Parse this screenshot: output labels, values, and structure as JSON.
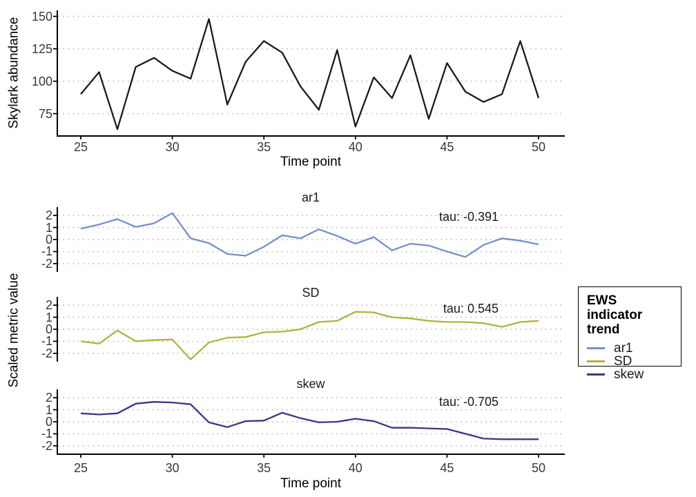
{
  "figure": {
    "background": "#ffffff",
    "axis_color": "#000000",
    "grid_color": "#c9c9c9",
    "tick_text_color": "#383838"
  },
  "x_values": [
    25,
    26,
    27,
    28,
    29,
    30,
    31,
    32,
    33,
    34,
    35,
    36,
    37,
    38,
    39,
    40,
    41,
    42,
    43,
    44,
    45,
    46,
    47,
    48,
    49,
    50
  ],
  "shared_axis": {
    "ylabel": "Scaled metric value",
    "xlabel": "Time point",
    "xticks": [
      25,
      30,
      35,
      40,
      45,
      50
    ]
  },
  "chart_data": [
    {
      "id": "abundance",
      "type": "line",
      "title": "",
      "xlabel": "Time point",
      "ylabel": "Skylark abundance",
      "color": "#1a1a1a",
      "xticks": [
        25,
        30,
        35,
        40,
        45,
        50
      ],
      "yticks": [
        75,
        100,
        125,
        150
      ],
      "xlim": [
        23.7,
        51.4
      ],
      "ylim": [
        58,
        155
      ],
      "grid": "dotted-horizontal",
      "values": [
        90,
        107,
        63,
        111,
        118,
        108,
        102,
        148,
        82,
        115,
        131,
        122,
        96,
        78,
        124,
        65,
        103,
        87,
        120,
        71,
        114,
        92,
        84,
        90,
        131,
        87
      ]
    },
    {
      "id": "ar1",
      "type": "line",
      "facet_title": "ar1",
      "annotation": "tau: -0.391",
      "color": "#758FCC",
      "yticks": [
        -2,
        -1,
        0,
        1,
        2
      ],
      "ylim": [
        -2.7,
        2.7
      ],
      "grid": "dotted-horizontal",
      "values": [
        0.9,
        1.25,
        1.7,
        1.05,
        1.35,
        2.2,
        0.1,
        -0.3,
        -1.2,
        -1.35,
        -0.6,
        0.35,
        0.1,
        0.85,
        0.3,
        -0.35,
        0.2,
        -0.9,
        -0.35,
        -0.5,
        -1.0,
        -1.45,
        -0.45,
        0.1,
        -0.1,
        -0.4
      ]
    },
    {
      "id": "SD",
      "type": "line",
      "facet_title": "SD",
      "annotation": "tau: 0.545",
      "color": "#B2B23B",
      "yticks": [
        -2,
        -1,
        0,
        1,
        2
      ],
      "ylim": [
        -2.7,
        2.7
      ],
      "grid": "dotted-horizontal",
      "values": [
        -1.0,
        -1.2,
        -0.1,
        -1.0,
        -0.9,
        -0.85,
        -2.5,
        -1.1,
        -0.7,
        -0.65,
        -0.25,
        -0.2,
        0.0,
        0.6,
        0.7,
        1.45,
        1.4,
        1.0,
        0.9,
        0.7,
        0.6,
        0.6,
        0.5,
        0.2,
        0.6,
        0.7
      ]
    },
    {
      "id": "skew",
      "type": "line",
      "facet_title": "skew",
      "annotation": "tau: -0.705",
      "color": "#4B2D83",
      "yticks": [
        -2,
        -1,
        0,
        1,
        2
      ],
      "ylim": [
        -2.7,
        2.7
      ],
      "grid": "dotted-horizontal",
      "values": [
        0.7,
        0.6,
        0.7,
        1.5,
        1.65,
        1.6,
        1.45,
        -0.05,
        -0.45,
        0.05,
        0.1,
        0.75,
        0.3,
        -0.05,
        0.0,
        0.25,
        0.05,
        -0.5,
        -0.5,
        -0.55,
        -0.6,
        -1.0,
        -1.4,
        -1.45,
        -1.45,
        -1.45
      ]
    }
  ],
  "legend": {
    "title": "EWS indicator trend",
    "items": [
      {
        "label": "ar1",
        "color": "#758FCC"
      },
      {
        "label": "SD",
        "color": "#B2B23B"
      },
      {
        "label": "skew",
        "color": "#4B2D83"
      }
    ]
  }
}
